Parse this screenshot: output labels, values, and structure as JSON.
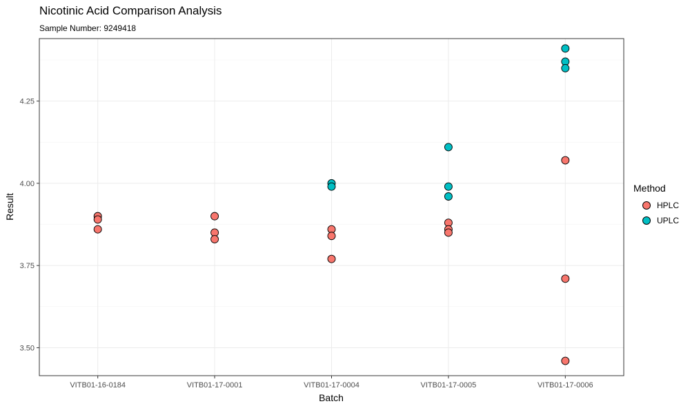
{
  "chart_data": {
    "type": "scatter",
    "title": "Nicotinic Acid Comparison Analysis",
    "subtitle": "Sample Number: 9249418",
    "xlabel": "Batch",
    "ylabel": "Result",
    "categories": [
      "VITB01-16-0184",
      "VITB01-17-0001",
      "VITB01-17-0004",
      "VITB01-17-0005",
      "VITB01-17-0006"
    ],
    "ylim": [
      3.415,
      4.44
    ],
    "yticks": [
      3.5,
      3.75,
      4.0,
      4.25
    ],
    "ytick_labels": [
      "3.50",
      "3.75",
      "4.00",
      "4.25"
    ],
    "grid": true,
    "legend": {
      "title": "Method",
      "position": "right"
    },
    "series": [
      {
        "name": "HPLC",
        "color": "#F8766D",
        "points": [
          {
            "x": "VITB01-16-0184",
            "y": 3.9
          },
          {
            "x": "VITB01-16-0184",
            "y": 3.89
          },
          {
            "x": "VITB01-16-0184",
            "y": 3.86
          },
          {
            "x": "VITB01-17-0001",
            "y": 3.9
          },
          {
            "x": "VITB01-17-0001",
            "y": 3.85
          },
          {
            "x": "VITB01-17-0001",
            "y": 3.83
          },
          {
            "x": "VITB01-17-0004",
            "y": 3.86
          },
          {
            "x": "VITB01-17-0004",
            "y": 3.84
          },
          {
            "x": "VITB01-17-0004",
            "y": 3.77
          },
          {
            "x": "VITB01-17-0005",
            "y": 3.88
          },
          {
            "x": "VITB01-17-0005",
            "y": 3.86
          },
          {
            "x": "VITB01-17-0005",
            "y": 3.85
          },
          {
            "x": "VITB01-17-0006",
            "y": 4.07
          },
          {
            "x": "VITB01-17-0006",
            "y": 3.71
          },
          {
            "x": "VITB01-17-0006",
            "y": 3.46
          }
        ]
      },
      {
        "name": "UPLC",
        "color": "#00BFC4",
        "points": [
          {
            "x": "VITB01-17-0004",
            "y": 4.0
          },
          {
            "x": "VITB01-17-0004",
            "y": 3.99
          },
          {
            "x": "VITB01-17-0005",
            "y": 4.11
          },
          {
            "x": "VITB01-17-0005",
            "y": 3.99
          },
          {
            "x": "VITB01-17-0005",
            "y": 3.96
          },
          {
            "x": "VITB01-17-0006",
            "y": 4.41
          },
          {
            "x": "VITB01-17-0006",
            "y": 4.37
          },
          {
            "x": "VITB01-17-0006",
            "y": 4.35
          }
        ]
      }
    ]
  }
}
